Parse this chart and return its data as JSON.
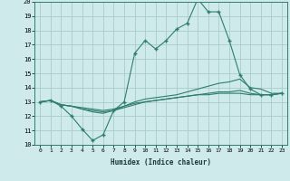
{
  "xlabel": "Humidex (Indice chaleur)",
  "x": [
    0,
    1,
    2,
    3,
    4,
    5,
    6,
    7,
    8,
    9,
    10,
    11,
    12,
    13,
    14,
    15,
    16,
    17,
    18,
    19,
    20,
    21,
    22,
    23
  ],
  "line1": [
    13.0,
    13.1,
    12.7,
    12.0,
    11.1,
    10.3,
    10.7,
    12.4,
    13.0,
    16.4,
    17.3,
    16.7,
    17.3,
    18.1,
    18.5,
    20.2,
    19.3,
    19.3,
    17.3,
    14.9,
    13.9,
    13.5,
    13.5,
    13.6
  ],
  "line2": [
    13.0,
    13.1,
    12.8,
    12.7,
    12.5,
    12.3,
    12.2,
    12.4,
    12.7,
    13.0,
    13.2,
    13.3,
    13.4,
    13.5,
    13.7,
    13.9,
    14.1,
    14.3,
    14.4,
    14.6,
    14.0,
    13.9,
    13.6,
    13.6
  ],
  "line3": [
    13.0,
    13.1,
    12.8,
    12.7,
    12.6,
    12.5,
    12.4,
    12.5,
    12.7,
    12.9,
    13.0,
    13.1,
    13.2,
    13.3,
    13.4,
    13.5,
    13.5,
    13.6,
    13.6,
    13.6,
    13.5,
    13.5,
    13.5,
    13.6
  ],
  "line4": [
    13.0,
    13.1,
    12.8,
    12.7,
    12.5,
    12.4,
    12.3,
    12.4,
    12.6,
    12.8,
    13.0,
    13.1,
    13.2,
    13.3,
    13.4,
    13.5,
    13.6,
    13.7,
    13.7,
    13.8,
    13.6,
    13.5,
    13.5,
    13.6
  ],
  "line_color": "#2e7d6e",
  "bg_color": "#ceeaea",
  "grid_color": "#aacccc",
  "ylim": [
    10,
    20
  ],
  "yticks": [
    10,
    11,
    12,
    13,
    14,
    15,
    16,
    17,
    18,
    19,
    20
  ],
  "xticks": [
    0,
    1,
    2,
    3,
    4,
    5,
    6,
    7,
    8,
    9,
    10,
    11,
    12,
    13,
    14,
    15,
    16,
    17,
    18,
    19,
    20,
    21,
    22,
    23
  ],
  "marker": "+"
}
